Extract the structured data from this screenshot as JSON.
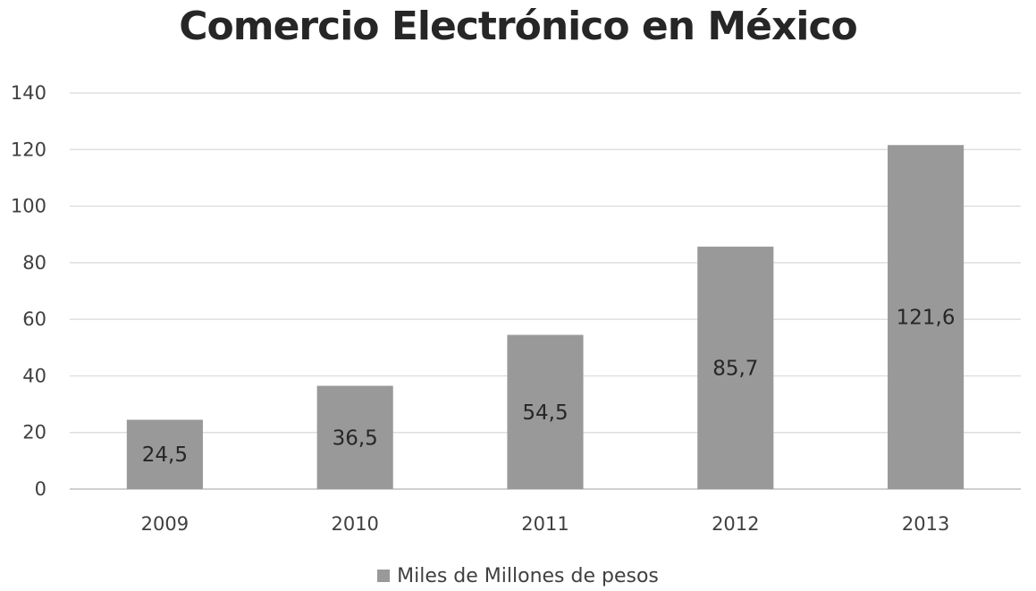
{
  "chart_data": {
    "type": "bar",
    "title": "Comercio Electrónico en México",
    "xlabel": "",
    "ylabel": "",
    "categories": [
      "2009",
      "2010",
      "2011",
      "2012",
      "2013"
    ],
    "series": [
      {
        "name": "Miles de Millones de pesos",
        "values": [
          24.5,
          36.5,
          54.5,
          85.7,
          121.6
        ],
        "data_labels": [
          "24,5",
          "36,5",
          "54,5",
          "85,7",
          "121,6"
        ],
        "color": "#999999"
      }
    ],
    "ylim": [
      0,
      140
    ],
    "yticks": [
      0,
      20,
      40,
      60,
      80,
      100,
      120,
      140
    ],
    "ytick_labels": [
      "0",
      "20",
      "40",
      "60",
      "80",
      "100",
      "120",
      "140"
    ],
    "grid": true,
    "gridline_color": "#d9d9d9",
    "legend_position": "bottom"
  }
}
